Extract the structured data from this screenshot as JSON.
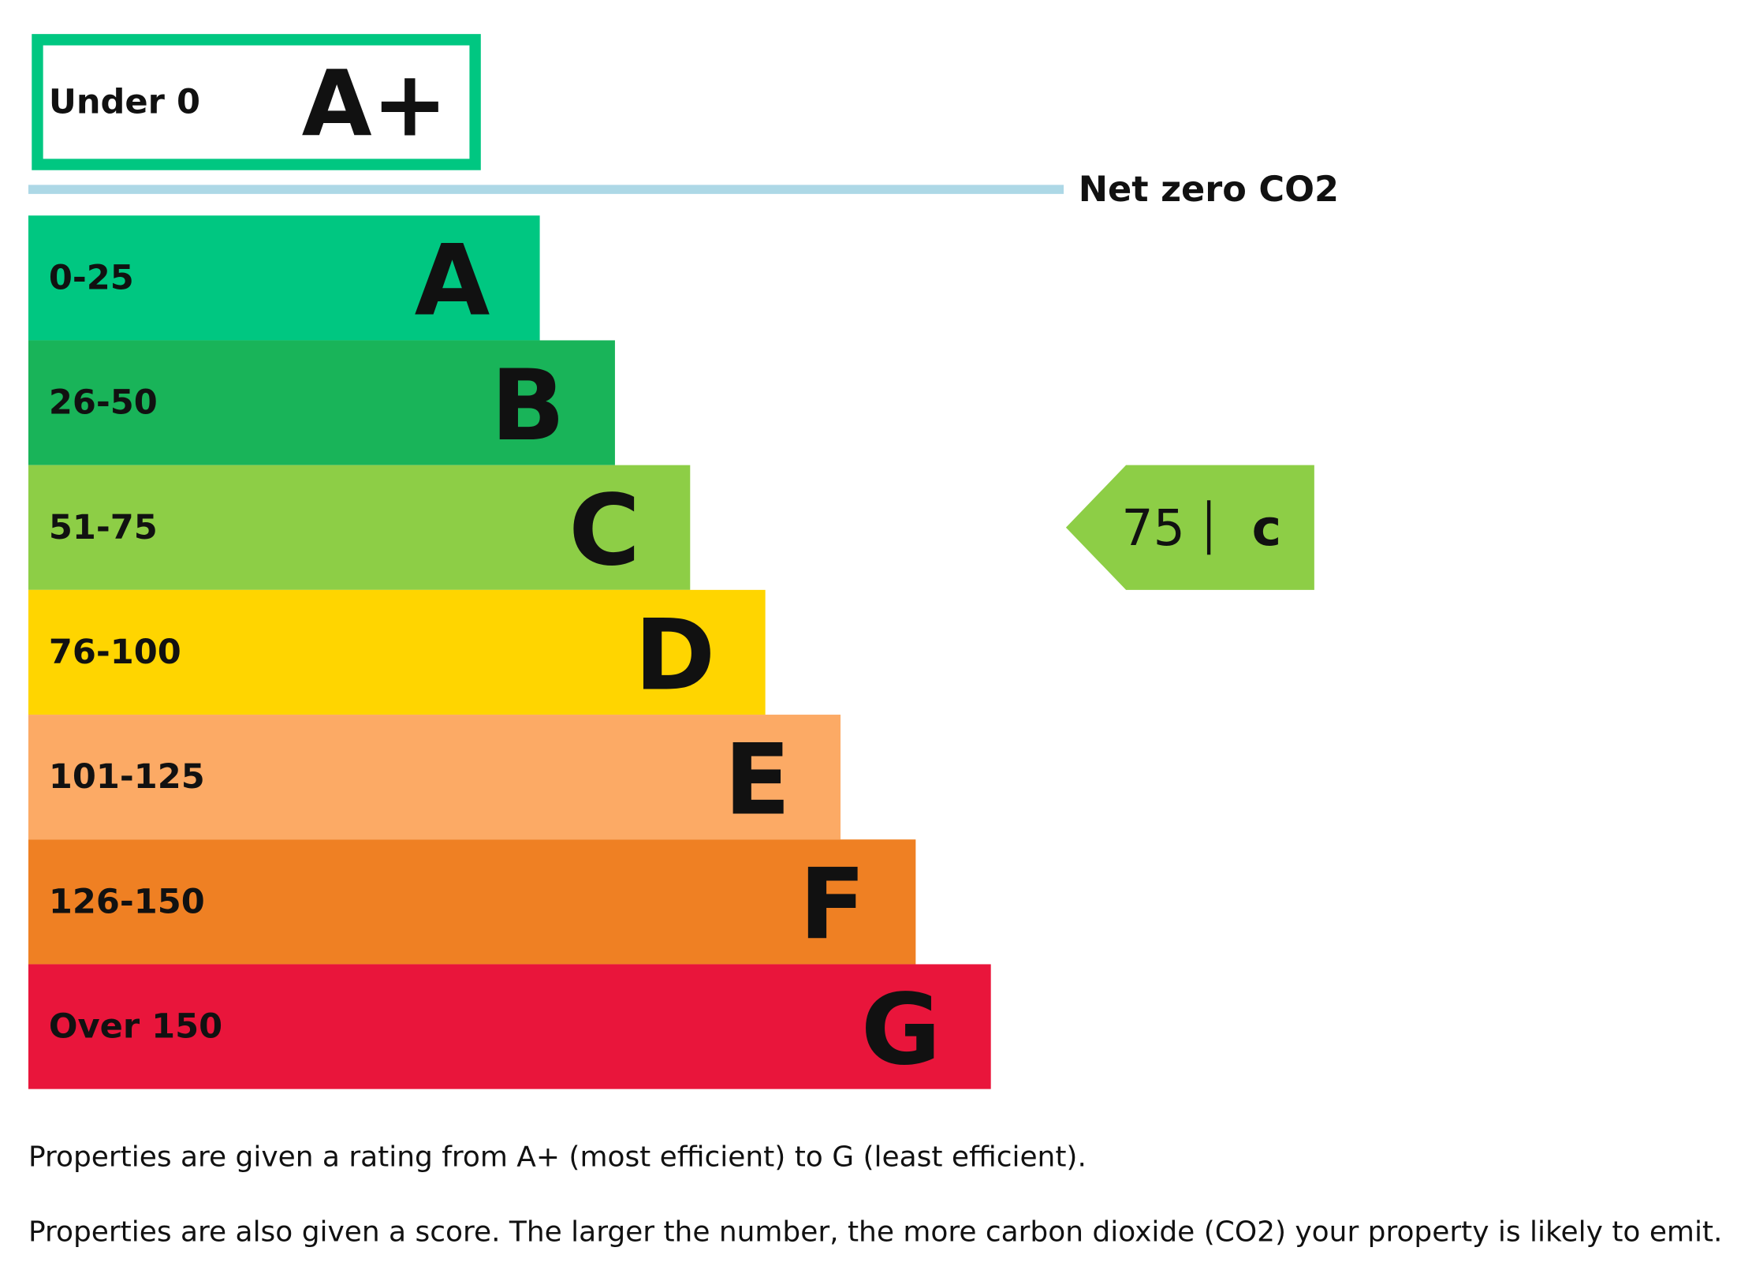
{
  "top_band": {
    "range": "Under 0",
    "letter": "A+",
    "color": "#00c781"
  },
  "net_zero_label": "Net zero CO2",
  "bands": [
    {
      "range": "0-25",
      "letter": "A",
      "color": "#00c781"
    },
    {
      "range": "26-50",
      "letter": "B",
      "color": "#19b459"
    },
    {
      "range": "51-75",
      "letter": "C",
      "color": "#8dce46"
    },
    {
      "range": "76-100",
      "letter": "D",
      "color": "#ffd500"
    },
    {
      "range": "101-125",
      "letter": "E",
      "color": "#fcaa65"
    },
    {
      "range": "126-150",
      "letter": "F",
      "color": "#ef8023"
    },
    {
      "range": "Over 150",
      "letter": "G",
      "color": "#e9153b"
    }
  ],
  "current": {
    "score": "75",
    "letter": "c",
    "band": 2
  },
  "notes": [
    "Properties are given a rating from A+ (most efficient) to G (least efficient).",
    "Properties are also given a score. The larger the number, the more carbon dioxide (CO2) your property is likely to emit."
  ]
}
